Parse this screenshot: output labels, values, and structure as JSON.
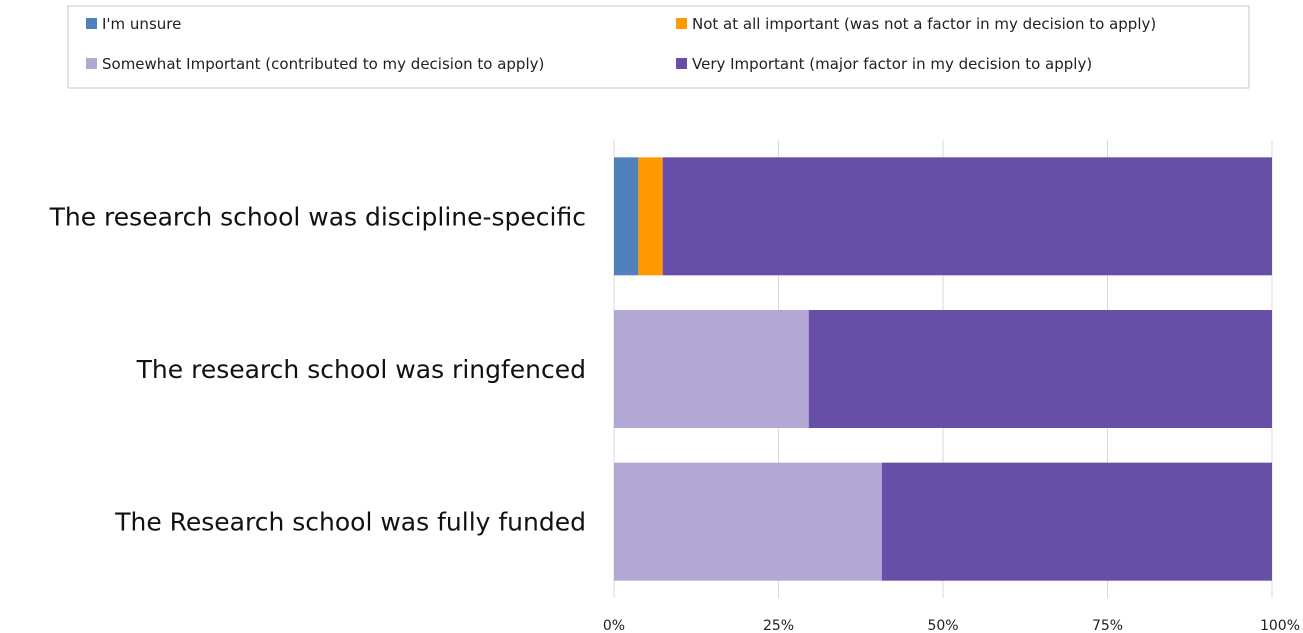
{
  "chart_data": {
    "type": "bar",
    "orientation": "horizontal",
    "stacked": "percent",
    "categories": [
      "The research school was discipline-specific",
      "The research school was ringfenced",
      "The Research school was fully funded"
    ],
    "series": [
      {
        "name": "I'm unsure",
        "color": "#4f81bd",
        "values": [
          3.7,
          0,
          0
        ]
      },
      {
        "name": "Not at all important (was not a factor in my decision to apply)",
        "color": "#ff9900",
        "values": [
          3.7,
          0,
          0
        ]
      },
      {
        "name": "Somewhat Important (contributed to my decision to apply)",
        "color": "#b3a8d5",
        "values": [
          0,
          29.6,
          40.7
        ]
      },
      {
        "name": "Very Important (major factor in my decision to apply)",
        "color": "#674ea7",
        "values": [
          92.6,
          70.4,
          59.3
        ]
      }
    ],
    "xlim": [
      0,
      100
    ],
    "x_ticks": [
      "0%",
      "25%",
      "50%",
      "75%",
      "100%"
    ],
    "grid": "vertical",
    "legend_position": "top",
    "title": "",
    "xlabel": "",
    "ylabel": ""
  }
}
